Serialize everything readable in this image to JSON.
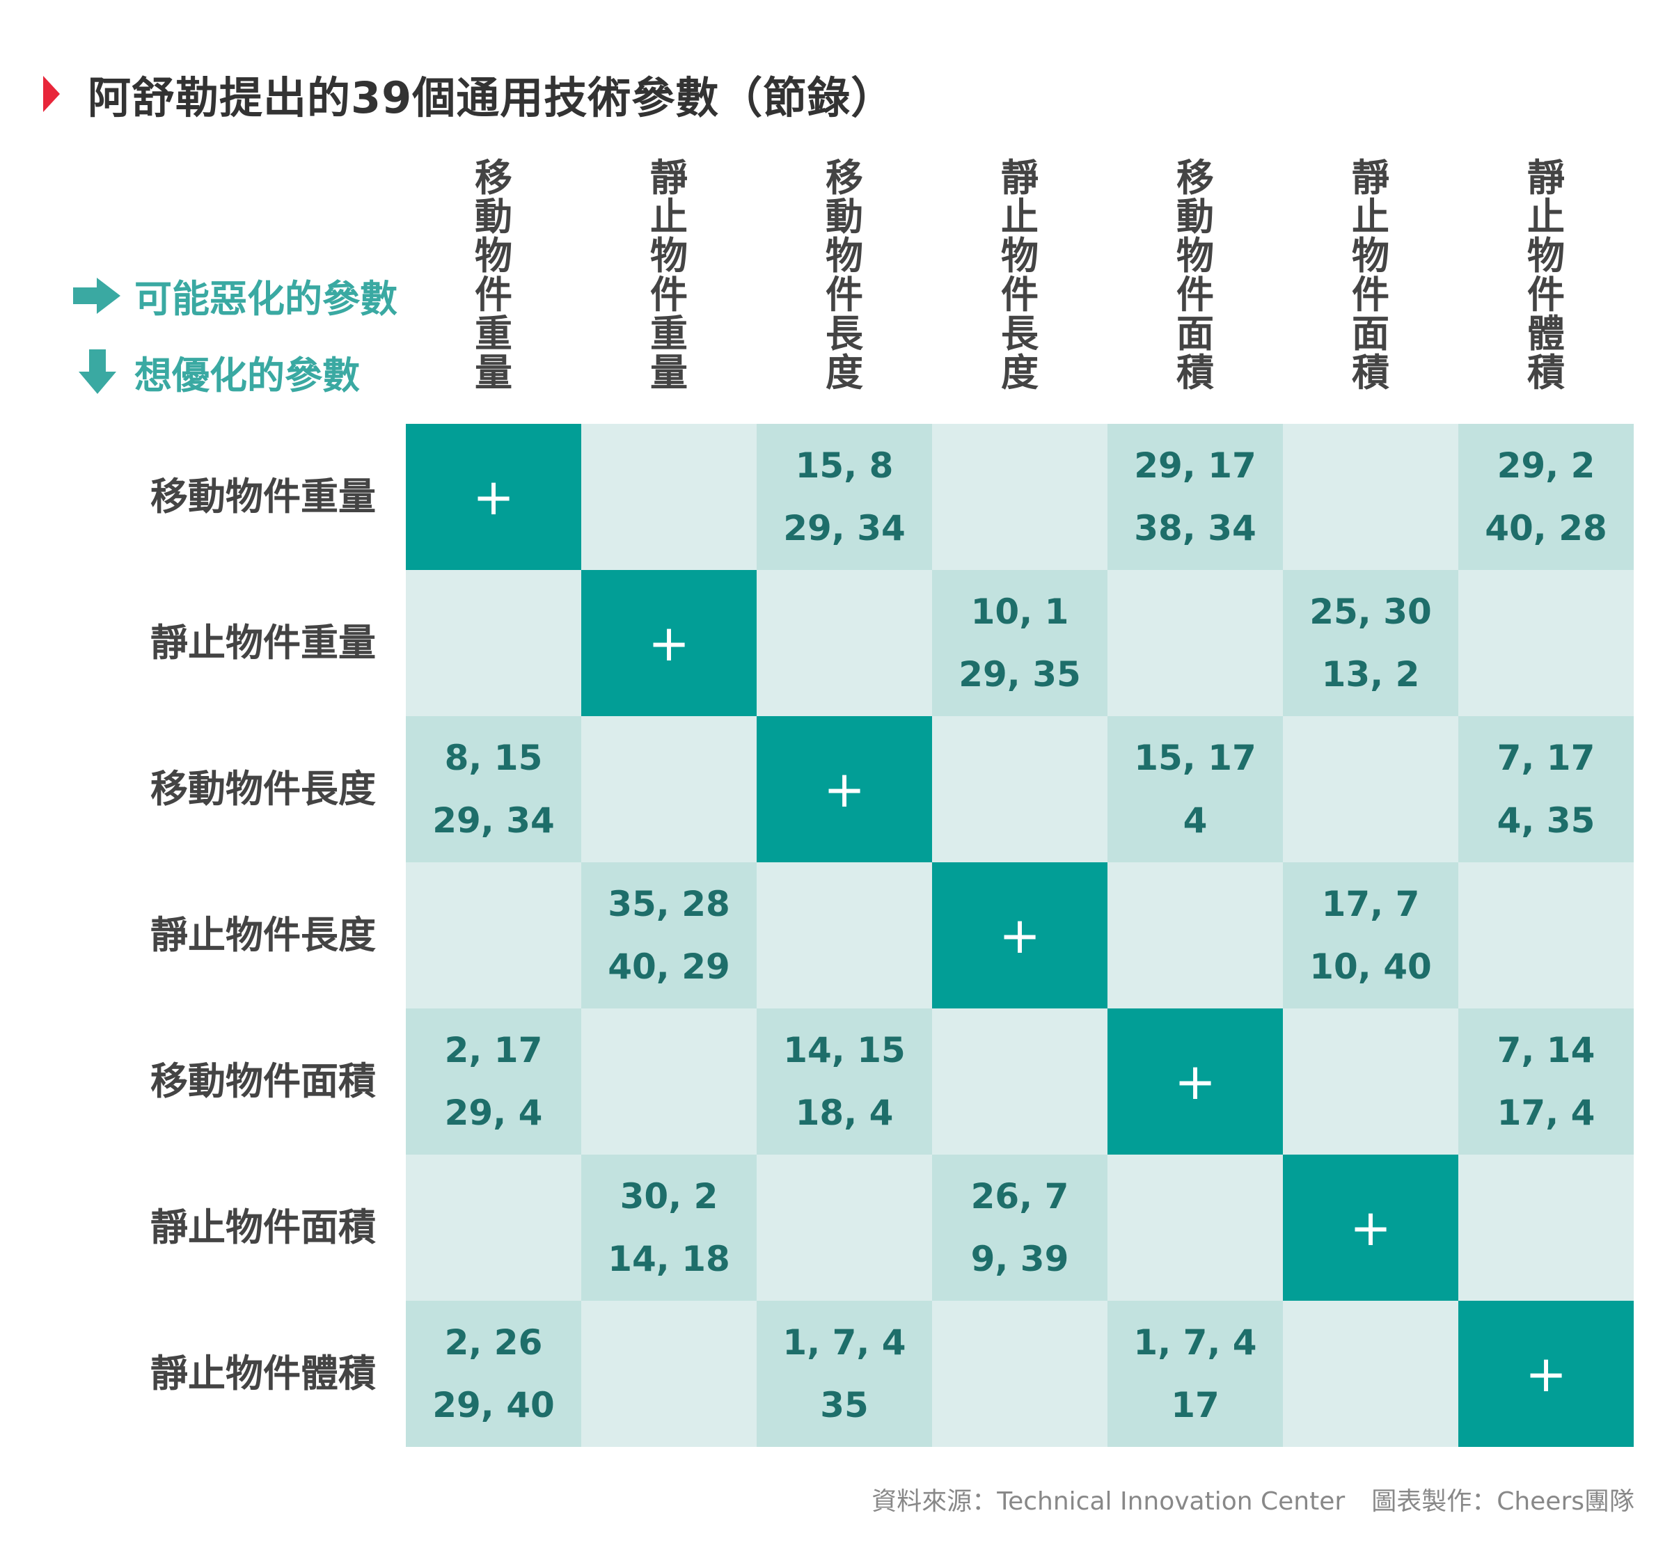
{
  "title": "阿舒勒提出的39個通用技術參數（節錄）",
  "legend": {
    "right": "可能惡化的參數",
    "down": "想優化的參數"
  },
  "colors": {
    "title_arrow": "#e8263a",
    "legend": "#3aa9a2",
    "diagonal": "#029e96",
    "cell_dark": "#c2e2df",
    "cell_light": "#dcedec",
    "cell_text": "#1e6e6a",
    "header_text": "#444444"
  },
  "chart_data": {
    "type": "table",
    "columns": [
      "移動物件重量",
      "靜止物件重量",
      "移動物件長度",
      "靜止物件長度",
      "移動物件面積",
      "靜止物件面積",
      "靜止物件體積"
    ],
    "rows": [
      "移動物件重量",
      "靜止物件重量",
      "移動物件長度",
      "靜止物件長度",
      "移動物件面積",
      "靜止物件面積",
      "靜止物件體積"
    ],
    "diagonal_symbol": "+",
    "cells": [
      [
        [
          "+"
        ],
        [],
        [
          "15, 8",
          "29, 34"
        ],
        [],
        [
          "29, 17",
          "38, 34"
        ],
        [],
        [
          "29, 2",
          "40, 28"
        ]
      ],
      [
        [],
        [
          "+"
        ],
        [],
        [
          "10, 1",
          "29, 35"
        ],
        [],
        [
          "25, 30",
          "13, 2"
        ],
        []
      ],
      [
        [
          "8, 15",
          "29, 34"
        ],
        [],
        [
          "+"
        ],
        [],
        [
          "15, 17",
          "4"
        ],
        [],
        [
          "7, 17",
          "4, 35"
        ]
      ],
      [
        [],
        [
          "35, 28",
          "40, 29"
        ],
        [],
        [
          "+"
        ],
        [],
        [
          "17, 7",
          "10, 40"
        ],
        []
      ],
      [
        [
          "2, 17",
          "29, 4"
        ],
        [],
        [
          "14, 15",
          "18, 4"
        ],
        [],
        [
          "+"
        ],
        [],
        [
          "7, 14",
          "17, 4"
        ]
      ],
      [
        [],
        [
          "30, 2",
          "14, 18"
        ],
        [],
        [
          "26, 7",
          "9, 39"
        ],
        [],
        [
          "+"
        ],
        []
      ],
      [
        [
          "2, 26",
          "29, 40"
        ],
        [],
        [
          "1, 7, 4",
          "35"
        ],
        [],
        [
          "1, 7, 4",
          "17"
        ],
        [],
        [
          "+"
        ]
      ]
    ]
  },
  "footer": {
    "source": "資料來源：Technical Innovation Center",
    "credit": "圖表製作：Cheers團隊"
  }
}
